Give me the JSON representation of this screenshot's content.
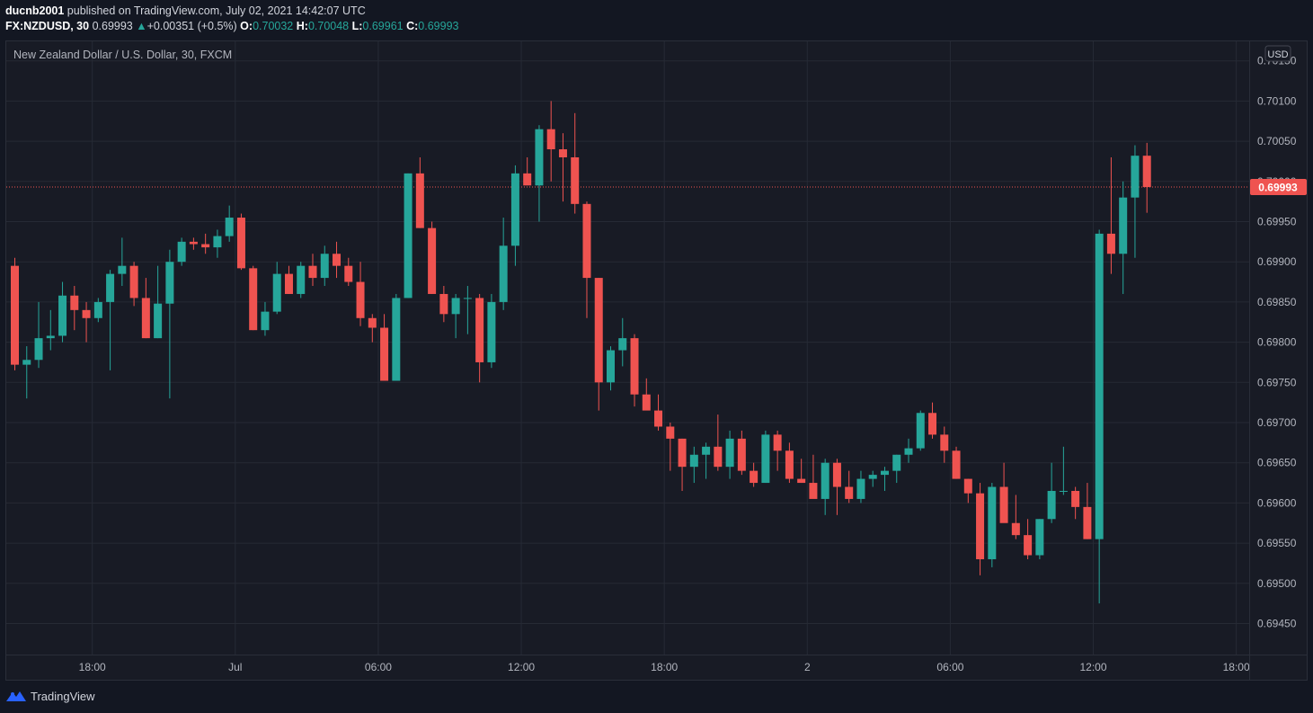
{
  "header": {
    "publisher": "ducnb2001",
    "published_text": "published on TradingView.com, July 02, 2021 14:42:07 UTC",
    "symbol": "FX:NZDUSD, 30",
    "last": "0.69993",
    "change_arrow": "▲",
    "change": "+0.00351 (+0.5%)",
    "open_label": "O:",
    "open": "0.70032",
    "high_label": "H:",
    "high": "0.70048",
    "low_label": "L:",
    "low": "0.69961",
    "close_label": "C:",
    "close": "0.69993"
  },
  "footer": {
    "brand": "TradingView",
    "logo_icon": "tradingview-logo-icon"
  },
  "colors": {
    "up": "#26a69a",
    "down": "#ef5350",
    "background": "#181b25",
    "grid": "#262a35",
    "text": "#b2b5be",
    "price_tag": "#ef5350"
  },
  "chart_data": {
    "type": "candlestick",
    "title": "New Zealand Dollar / U.S. Dollar, 30, FXCM",
    "currency": "USD",
    "ylim": [
      0.69415,
      0.70155
    ],
    "y_ticks": [
      0.7015,
      0.701,
      0.7005,
      0.7,
      0.6995,
      0.699,
      0.6985,
      0.698,
      0.6975,
      0.697,
      0.6965,
      0.696,
      0.6955,
      0.695,
      0.6945
    ],
    "y_tick_labels": [
      "0.70150",
      "0.70100",
      "0.70050",
      "0.70000",
      "0.69950",
      "0.69900",
      "0.69850",
      "0.69800",
      "0.69750",
      "0.69700",
      "0.69650",
      "0.69600",
      "0.69550",
      "0.69500",
      "0.69450"
    ],
    "x_tick_labels": [
      "18:00",
      "Jul",
      "06:00",
      "12:00",
      "18:00",
      "2",
      "06:00",
      "12:00",
      "18:00"
    ],
    "x_tick_bars": [
      6.5,
      18.5,
      30.5,
      42.5,
      54.5,
      66.5,
      78.5,
      90.5,
      102.5
    ],
    "last_price": 0.69993,
    "last_price_label": "0.69993",
    "grid": true,
    "candles": [
      [
        0.69895,
        0.69905,
        0.69765,
        0.69772
      ],
      [
        0.69772,
        0.69795,
        0.6973,
        0.69778
      ],
      [
        0.69778,
        0.6985,
        0.69768,
        0.69805
      ],
      [
        0.69805,
        0.6984,
        0.6979,
        0.69808
      ],
      [
        0.69808,
        0.69875,
        0.698,
        0.69858
      ],
      [
        0.69858,
        0.6987,
        0.69815,
        0.6984
      ],
      [
        0.6984,
        0.6985,
        0.698,
        0.6983
      ],
      [
        0.6983,
        0.69855,
        0.69825,
        0.6985
      ],
      [
        0.6985,
        0.6989,
        0.69765,
        0.69885
      ],
      [
        0.69885,
        0.6993,
        0.6987,
        0.69895
      ],
      [
        0.69895,
        0.699,
        0.69845,
        0.69855
      ],
      [
        0.69855,
        0.6988,
        0.69805,
        0.69805
      ],
      [
        0.69805,
        0.69895,
        0.69805,
        0.69848
      ],
      [
        0.69848,
        0.69915,
        0.6973,
        0.699
      ],
      [
        0.699,
        0.6993,
        0.69895,
        0.69925
      ],
      [
        0.69925,
        0.6993,
        0.69915,
        0.69922
      ],
      [
        0.69922,
        0.69935,
        0.6991,
        0.69918
      ],
      [
        0.69918,
        0.6994,
        0.69905,
        0.69932
      ],
      [
        0.69932,
        0.6997,
        0.69925,
        0.69955
      ],
      [
        0.69955,
        0.6996,
        0.6989,
        0.69892
      ],
      [
        0.69892,
        0.69895,
        0.69815,
        0.69815
      ],
      [
        0.69815,
        0.6985,
        0.69808,
        0.69838
      ],
      [
        0.69838,
        0.699,
        0.69835,
        0.69885
      ],
      [
        0.69885,
        0.69895,
        0.6986,
        0.6986
      ],
      [
        0.6986,
        0.699,
        0.69855,
        0.69895
      ],
      [
        0.69895,
        0.6991,
        0.6987,
        0.6988
      ],
      [
        0.6988,
        0.6992,
        0.6987,
        0.6991
      ],
      [
        0.6991,
        0.69925,
        0.6988,
        0.69895
      ],
      [
        0.69895,
        0.69905,
        0.6987,
        0.69875
      ],
      [
        0.69875,
        0.699,
        0.6982,
        0.6983
      ],
      [
        0.6983,
        0.69835,
        0.698,
        0.69818
      ],
      [
        0.69818,
        0.69835,
        0.69752,
        0.69752
      ],
      [
        0.69752,
        0.6986,
        0.69752,
        0.69855
      ],
      [
        0.69855,
        0.7001,
        0.69855,
        0.7001
      ],
      [
        0.7001,
        0.7003,
        0.69942,
        0.69942
      ],
      [
        0.69942,
        0.6995,
        0.6986,
        0.6986
      ],
      [
        0.6986,
        0.6987,
        0.69825,
        0.69835
      ],
      [
        0.69835,
        0.6986,
        0.69805,
        0.69855
      ],
      [
        0.69855,
        0.6987,
        0.6981,
        0.69855
      ],
      [
        0.69855,
        0.6986,
        0.6975,
        0.69775
      ],
      [
        0.69775,
        0.6986,
        0.69768,
        0.6985
      ],
      [
        0.6985,
        0.69955,
        0.6984,
        0.6992
      ],
      [
        0.6992,
        0.7002,
        0.69895,
        0.7001
      ],
      [
        0.7001,
        0.7003,
        0.7,
        0.69995
      ],
      [
        0.69995,
        0.7007,
        0.6995,
        0.70065
      ],
      [
        0.70065,
        0.701,
        0.7,
        0.7004
      ],
      [
        0.7004,
        0.7006,
        0.69975,
        0.7003
      ],
      [
        0.7003,
        0.70085,
        0.6996,
        0.69972
      ],
      [
        0.69972,
        0.69975,
        0.6983,
        0.6988
      ],
      [
        0.6988,
        0.6988,
        0.69715,
        0.6975
      ],
      [
        0.6975,
        0.69795,
        0.6974,
        0.6979
      ],
      [
        0.6979,
        0.6983,
        0.6977,
        0.69805
      ],
      [
        0.69805,
        0.6981,
        0.6972,
        0.69735
      ],
      [
        0.69735,
        0.69755,
        0.6972,
        0.69715
      ],
      [
        0.69715,
        0.69735,
        0.6969,
        0.69695
      ],
      [
        0.69695,
        0.697,
        0.6964,
        0.6968
      ],
      [
        0.6968,
        0.6968,
        0.69615,
        0.69645
      ],
      [
        0.69645,
        0.6967,
        0.69625,
        0.6966
      ],
      [
        0.6966,
        0.69675,
        0.6963,
        0.6967
      ],
      [
        0.6967,
        0.6971,
        0.6964,
        0.69645
      ],
      [
        0.69645,
        0.6969,
        0.6963,
        0.6968
      ],
      [
        0.6968,
        0.6969,
        0.69635,
        0.6964
      ],
      [
        0.6964,
        0.6965,
        0.6962,
        0.69625
      ],
      [
        0.69625,
        0.6969,
        0.69625,
        0.69685
      ],
      [
        0.69685,
        0.6969,
        0.6964,
        0.69665
      ],
      [
        0.69665,
        0.69675,
        0.69625,
        0.6963
      ],
      [
        0.6963,
        0.69655,
        0.69625,
        0.69625
      ],
      [
        0.69625,
        0.6966,
        0.6961,
        0.69605
      ],
      [
        0.69605,
        0.69655,
        0.69585,
        0.6965
      ],
      [
        0.6965,
        0.69655,
        0.69585,
        0.6962
      ],
      [
        0.6962,
        0.6964,
        0.696,
        0.69605
      ],
      [
        0.69605,
        0.6964,
        0.696,
        0.6963
      ],
      [
        0.6963,
        0.6964,
        0.6962,
        0.69635
      ],
      [
        0.69635,
        0.69645,
        0.69615,
        0.6964
      ],
      [
        0.6964,
        0.6966,
        0.69625,
        0.6966
      ],
      [
        0.6966,
        0.6968,
        0.6965,
        0.69668
      ],
      [
        0.69668,
        0.69715,
        0.69665,
        0.69712
      ],
      [
        0.69712,
        0.69725,
        0.6968,
        0.69685
      ],
      [
        0.69685,
        0.69695,
        0.6965,
        0.69665
      ],
      [
        0.69665,
        0.6967,
        0.6963,
        0.6963
      ],
      [
        0.6963,
        0.6963,
        0.696,
        0.69612
      ],
      [
        0.69612,
        0.69625,
        0.6951,
        0.6953
      ],
      [
        0.6953,
        0.69625,
        0.6952,
        0.6962
      ],
      [
        0.6962,
        0.6965,
        0.6958,
        0.69575
      ],
      [
        0.69575,
        0.6961,
        0.69555,
        0.6956
      ],
      [
        0.6956,
        0.6958,
        0.6953,
        0.69535
      ],
      [
        0.69535,
        0.6958,
        0.6953,
        0.6958
      ],
      [
        0.6958,
        0.6965,
        0.69575,
        0.69615
      ],
      [
        0.69615,
        0.6967,
        0.6961,
        0.69615
      ],
      [
        0.69615,
        0.6962,
        0.6958,
        0.69595
      ],
      [
        0.69595,
        0.69625,
        0.69555,
        0.69555
      ],
      [
        0.69555,
        0.6994,
        0.69475,
        0.69935
      ],
      [
        0.69935,
        0.7003,
        0.69885,
        0.6991
      ],
      [
        0.6991,
        0.7,
        0.6986,
        0.6998
      ],
      [
        0.6998,
        0.70045,
        0.69905,
        0.70032
      ],
      [
        0.70032,
        0.70048,
        0.69961,
        0.69993
      ]
    ]
  }
}
